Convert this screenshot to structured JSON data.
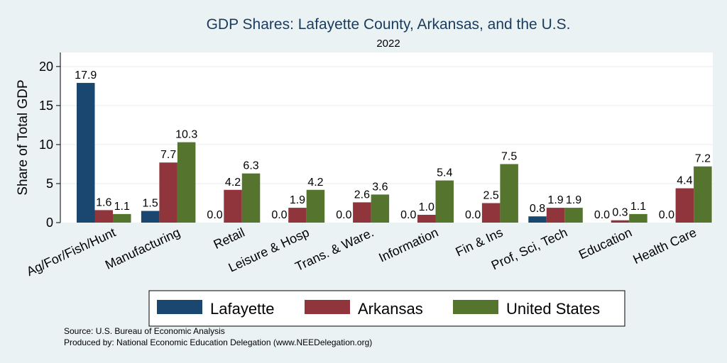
{
  "chart_data": {
    "type": "bar",
    "title": "GDP Shares: Lafayette County, Arkansas, and the U.S.",
    "subtitle": "2022",
    "ylabel": "Share of Total GDP",
    "xlabel": "",
    "ylim": [
      0,
      21.8
    ],
    "yticks": [
      0,
      5,
      10,
      15,
      20
    ],
    "grid": true,
    "legend_position": "bottom",
    "categories": [
      "Ag/For/Fish/Hunt",
      "Manufacturing",
      "Retail",
      "Leisure & Hosp",
      "Trans. & Ware.",
      "Information",
      "Fin & Ins",
      "Prof, Sci, Tech",
      "Education",
      "Health Care"
    ],
    "series": [
      {
        "name": "Lafayette",
        "color": "#1a476f",
        "values": [
          17.9,
          1.5,
          0.0,
          0.0,
          0.0,
          0.0,
          0.0,
          0.8,
          0.0,
          0.0
        ]
      },
      {
        "name": "Arkansas",
        "color": "#90353b",
        "values": [
          1.6,
          7.7,
          4.2,
          1.9,
          2.6,
          1.0,
          2.5,
          1.9,
          0.3,
          4.4
        ]
      },
      {
        "name": "United States",
        "color": "#55752f",
        "values": [
          1.1,
          10.3,
          6.3,
          4.2,
          3.6,
          5.4,
          7.5,
          1.9,
          1.1,
          7.2
        ]
      }
    ],
    "source_note": "Source: U.S. Bureau of Economic Analysis",
    "produced_note": "Produced by: National Economic Education Delegation (www.NEEDelegation.org)"
  }
}
